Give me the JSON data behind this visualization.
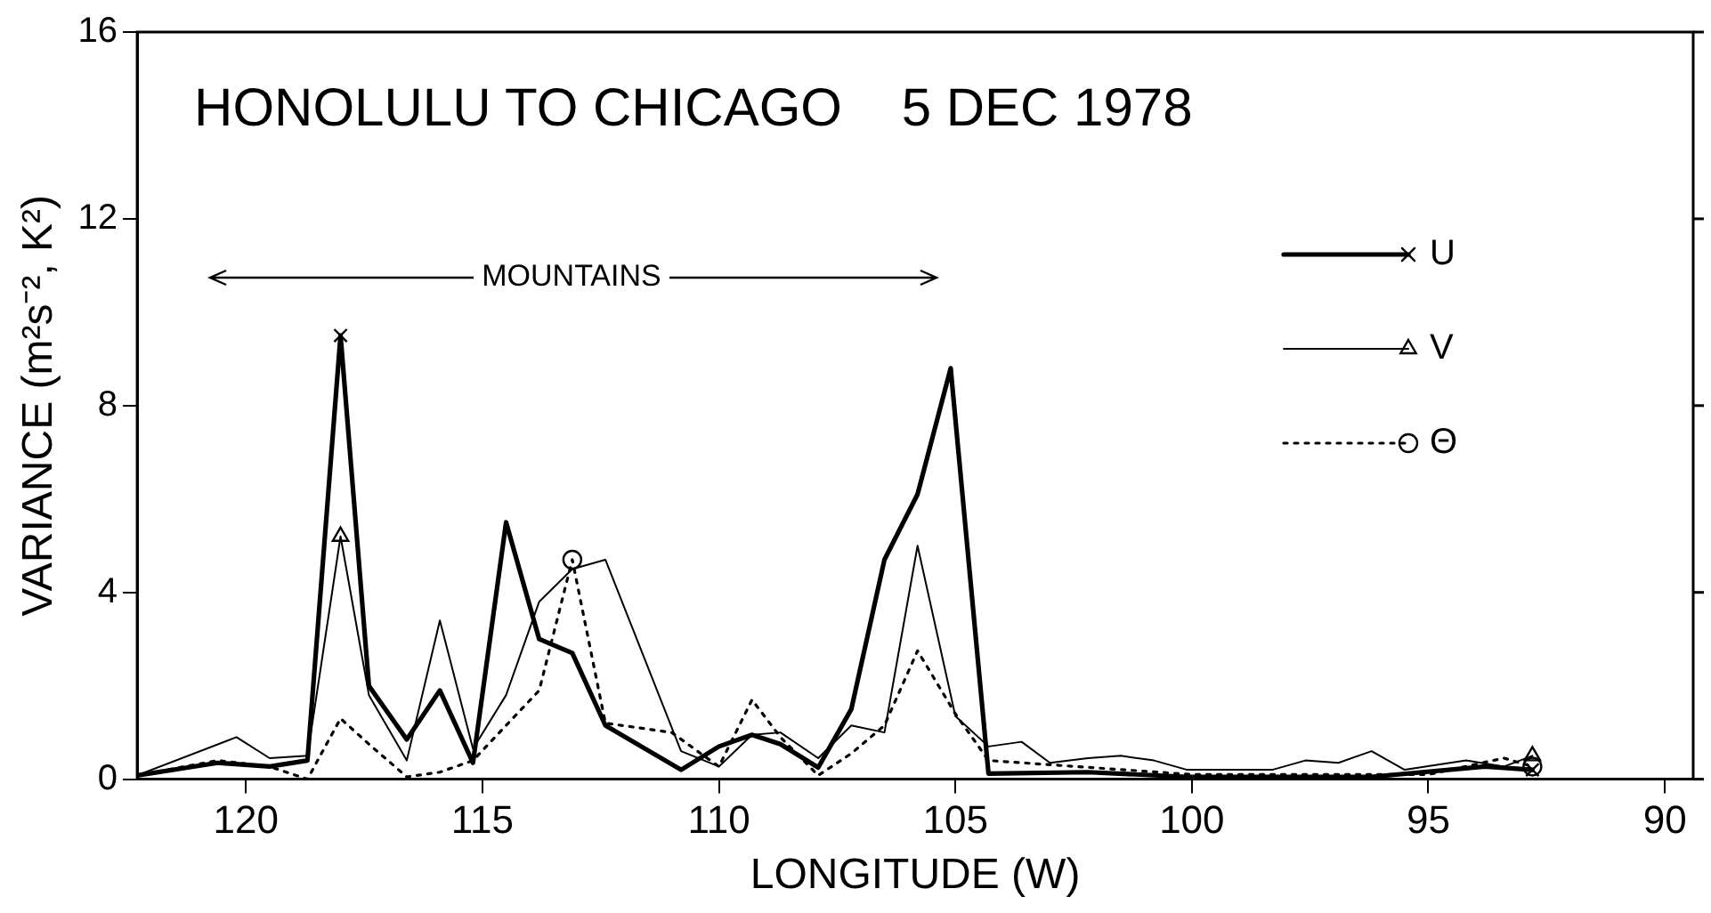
{
  "chart_data": {
    "type": "line",
    "title": "HONOLULU TO CHICAGO    5 DEC 1978",
    "xlabel": "LONGITUDE (W)",
    "ylabel": "VARIANCE (m²s⁻², K²)",
    "xlim": [
      122.3,
      89.4
    ],
    "xticks": [
      120,
      115,
      110,
      105,
      100,
      95,
      90
    ],
    "ylim": [
      0,
      16
    ],
    "yticks": [
      0,
      4,
      8,
      12,
      16
    ],
    "grid": false,
    "legend": "top right",
    "annotations": [
      "MOUNTAINS"
    ],
    "series": [
      {
        "name": "U",
        "color": "#000000",
        "line_style": "solid",
        "x": [
          122.3,
          120.6,
          119.5,
          118.7,
          118.0,
          117.4,
          116.6,
          115.9,
          115.2,
          114.5,
          113.8,
          113.1,
          112.4,
          110.8,
          110.0,
          109.3,
          108.7,
          107.9,
          107.2,
          106.5,
          105.8,
          105.1,
          104.3,
          102.2,
          100.1,
          98.3,
          96.2,
          93.8,
          92.8
        ],
        "values": [
          0.08,
          0.35,
          0.27,
          0.4,
          9.5,
          2.0,
          0.85,
          1.9,
          0.35,
          5.5,
          3.0,
          2.7,
          1.15,
          0.2,
          0.7,
          0.95,
          0.75,
          0.25,
          1.5,
          4.7,
          6.1,
          8.8,
          0.12,
          0.15,
          0.05,
          0.05,
          0.05,
          0.27,
          0.2
        ]
      },
      {
        "name": "V",
        "color": "#000000",
        "line_style": "solid",
        "x": [
          122.3,
          120.2,
          119.5,
          118.7,
          118.0,
          117.4,
          116.6,
          115.9,
          115.2,
          114.5,
          113.8,
          113.1,
          112.4,
          110.8,
          110.0,
          109.3,
          108.7,
          107.9,
          107.2,
          106.5,
          105.8,
          105.0,
          104.3,
          103.6,
          103.0,
          102.2,
          101.5,
          100.8,
          100.1,
          98.3,
          97.6,
          96.9,
          96.2,
          95.5,
          94.2,
          93.4,
          92.8
        ],
        "values": [
          0.08,
          0.9,
          0.45,
          0.5,
          5.2,
          1.8,
          0.4,
          3.4,
          0.65,
          1.8,
          3.8,
          4.5,
          4.7,
          0.6,
          0.27,
          0.95,
          1.0,
          0.45,
          1.15,
          1.0,
          5.0,
          1.35,
          0.7,
          0.8,
          0.35,
          0.45,
          0.5,
          0.4,
          0.2,
          0.2,
          0.4,
          0.35,
          0.6,
          0.2,
          0.4,
          0.27,
          0.5
        ]
      },
      {
        "name": "Θ",
        "color": "#000000",
        "line_style": "dotted",
        "x": [
          122.3,
          120.6,
          119.5,
          118.7,
          118.0,
          117.4,
          116.6,
          115.9,
          115.2,
          114.5,
          113.8,
          113.1,
          112.4,
          111.0,
          110.0,
          109.3,
          108.7,
          107.9,
          107.2,
          106.5,
          105.8,
          105.0,
          104.3,
          100.0,
          95.0,
          93.4,
          92.8
        ],
        "values": [
          0.08,
          0.4,
          0.27,
          0,
          1.3,
          0.75,
          0.05,
          0.15,
          0.4,
          1.15,
          1.9,
          4.7,
          1.2,
          1.0,
          0.27,
          1.7,
          0.9,
          0.08,
          0.55,
          1.15,
          2.75,
          1.4,
          0.4,
          0.1,
          0.1,
          0.45,
          0.27
        ]
      },
      {
        "type": "scatter",
        "color": "#000000",
        "marker": "cross",
        "x": [
          118.0,
          92.8
        ],
        "values": [
          9.5,
          0.2
        ]
      },
      {
        "type": "scatter",
        "color": "#000000",
        "marker": "triangle",
        "x": [
          118.0,
          92.8
        ],
        "values": [
          5.2,
          0.5
        ]
      },
      {
        "type": "scatter",
        "color": "#000000",
        "marker": "circle",
        "x": [
          113.1,
          92.8
        ],
        "values": [
          4.7,
          0.27
        ]
      }
    ]
  }
}
